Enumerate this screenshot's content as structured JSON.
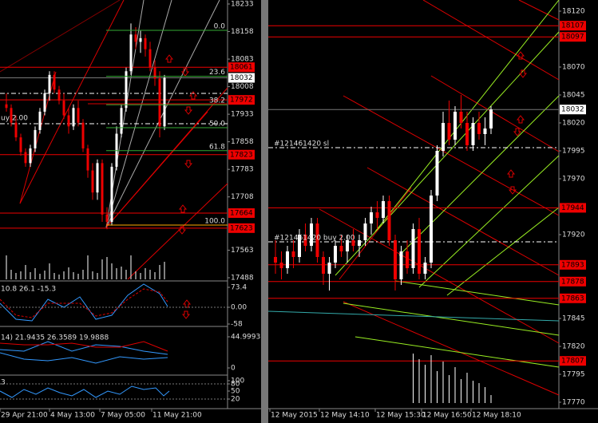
{
  "left_chart": {
    "price_axis": [
      18233,
      18158,
      18083,
      18008,
      17933,
      17858,
      17783,
      17708,
      17563,
      17488
    ],
    "levels": [
      18061,
      17972,
      17823,
      17664,
      17623
    ],
    "current_price": 18032,
    "fib_levels": [
      {
        "value": 0,
        "label": "0.0"
      },
      23.6,
      38.2,
      {
        "value": 50,
        "label": "50.0"
      },
      61.8,
      {
        "value": 100,
        "label": "100.0"
      }
    ],
    "order_label": "uy 2.00",
    "candles": [
      [
        17960,
        17990,
        17940,
        17950
      ],
      [
        17950,
        17960,
        17900,
        17910
      ],
      [
        17910,
        17930,
        17860,
        17870
      ],
      [
        17870,
        17880,
        17820,
        17830
      ],
      [
        17830,
        17840,
        17790,
        17800
      ],
      [
        17800,
        17850,
        17790,
        17840
      ],
      [
        17840,
        17900,
        17830,
        17890
      ],
      [
        17890,
        17950,
        17880,
        17940
      ],
      [
        17940,
        18000,
        17930,
        17990
      ],
      [
        17990,
        18050,
        17970,
        18040
      ],
      [
        18040,
        18050,
        17990,
        18000
      ],
      [
        18000,
        18010,
        17960,
        17970
      ],
      [
        17970,
        17990,
        17920,
        17930
      ],
      [
        17930,
        17950,
        17880,
        17900
      ],
      [
        17900,
        17960,
        17890,
        17950
      ],
      [
        17950,
        17970,
        17900,
        17910
      ],
      [
        17910,
        17920,
        17830,
        17840
      ],
      [
        17840,
        17850,
        17760,
        17780
      ],
      [
        17780,
        17800,
        17700,
        17720
      ],
      [
        17720,
        17810,
        17700,
        17800
      ],
      [
        17800,
        17810,
        17640,
        17660
      ],
      [
        17660,
        17680,
        17620,
        17640
      ],
      [
        17640,
        17800,
        17630,
        17790
      ],
      [
        17790,
        17900,
        17780,
        17880
      ],
      [
        17880,
        17960,
        17870,
        17950
      ],
      [
        17950,
        18060,
        17940,
        18050
      ],
      [
        18050,
        18180,
        18040,
        18150
      ],
      [
        18150,
        18170,
        18110,
        18130
      ],
      [
        18130,
        18160,
        18100,
        18140
      ],
      [
        18140,
        18150,
        18090,
        18110
      ],
      [
        18110,
        18130,
        18050,
        18060
      ],
      [
        18060,
        18080,
        18010,
        18030
      ],
      [
        18030,
        18050,
        17870,
        17900
      ],
      [
        17900,
        18040,
        17890,
        18032
      ]
    ],
    "volumes": [
      30,
      12,
      8,
      10,
      18,
      9,
      14,
      7,
      11,
      20,
      8,
      6,
      10,
      15,
      9,
      7,
      12,
      30,
      10,
      8,
      25,
      28,
      20,
      14,
      16,
      12,
      30,
      10,
      8,
      14,
      12,
      9,
      18,
      22
    ],
    "indicator_1": {
      "values_text": "10.8 26.1 -15.3",
      "axis": [
        73.4,
        {
          "value": 0,
          "label": "0.00"
        },
        -58
      ]
    },
    "indicator_2": {
      "values_text": "14) 21.9435 26.3589 19.9888",
      "axis": [
        44.9993,
        0
      ]
    },
    "indicator_3": {
      "values_text": "3",
      "axis": [
        100,
        80,
        50,
        20
      ]
    },
    "time_axis": [
      "29 Apr 21:00",
      "4 May 13:00",
      "7 May 05:00",
      "11 May 21:00"
    ]
  },
  "right_chart": {
    "price_axis": [
      18120,
      18070,
      18045,
      18020,
      17995,
      17970,
      17920,
      17845,
      17820,
      17795,
      17770
    ],
    "levels": [
      18107,
      18097,
      17944,
      17893,
      17878,
      17863,
      17807
    ],
    "current_price": 18032,
    "order_labels": [
      "#121461420 sl",
      "#121461420 buy 2.00"
    ],
    "candles": [
      [
        17900,
        17915,
        17885,
        17895
      ],
      [
        17895,
        17905,
        17880,
        17890
      ],
      [
        17890,
        17910,
        17885,
        17905
      ],
      [
        17905,
        17915,
        17890,
        17900
      ],
      [
        17900,
        17925,
        17895,
        17920
      ],
      [
        17920,
        17930,
        17905,
        17910
      ],
      [
        17910,
        17935,
        17905,
        17930
      ],
      [
        17930,
        17935,
        17895,
        17900
      ],
      [
        17900,
        17905,
        17875,
        17885
      ],
      [
        17885,
        17900,
        17870,
        17895
      ],
      [
        17895,
        17915,
        17890,
        17910
      ],
      [
        17910,
        17920,
        17900,
        17905
      ],
      [
        17905,
        17920,
        17895,
        17915
      ],
      [
        17915,
        17925,
        17905,
        17910
      ],
      [
        17910,
        17920,
        17900,
        17915
      ],
      [
        17915,
        17935,
        17910,
        17930
      ],
      [
        17930,
        17945,
        17920,
        17940
      ],
      [
        17940,
        17950,
        17925,
        17935
      ],
      [
        17935,
        17955,
        17930,
        17950
      ],
      [
        17950,
        17955,
        17910,
        17915
      ],
      [
        17915,
        17920,
        17870,
        17880
      ],
      [
        17880,
        17910,
        17875,
        17905
      ],
      [
        17905,
        17915,
        17885,
        17890
      ],
      [
        17890,
        17930,
        17885,
        17925
      ],
      [
        17925,
        17935,
        17880,
        17885
      ],
      [
        17885,
        17900,
        17880,
        17895
      ],
      [
        17895,
        17960,
        17890,
        17955
      ],
      [
        17955,
        18000,
        17950,
        17995
      ],
      [
        17995,
        18030,
        17990,
        18020
      ],
      [
        18020,
        18040,
        18000,
        18005
      ],
      [
        18005,
        18035,
        18000,
        18030
      ],
      [
        18030,
        18045,
        18015,
        18020
      ],
      [
        18020,
        18030,
        17995,
        18000
      ],
      [
        18000,
        18025,
        17995,
        18020
      ],
      [
        18020,
        18030,
        18005,
        18010
      ],
      [
        18010,
        18025,
        18000,
        18015
      ],
      [
        18015,
        18035,
        18010,
        18032
      ]
    ],
    "volumes": [
      0,
      0,
      0,
      0,
      0,
      0,
      0,
      0,
      0,
      0,
      0,
      0,
      0,
      0,
      0,
      0,
      0,
      0,
      0,
      0,
      0,
      0,
      0,
      62,
      55,
      48,
      60,
      40,
      52,
      35,
      45,
      30,
      38,
      28,
      25,
      20,
      10
    ],
    "time_axis": [
      "12 May 2015",
      "12 May 14:10",
      "12 May 15:30",
      "12 May 16:50",
      "12 May 18:10"
    ]
  }
}
